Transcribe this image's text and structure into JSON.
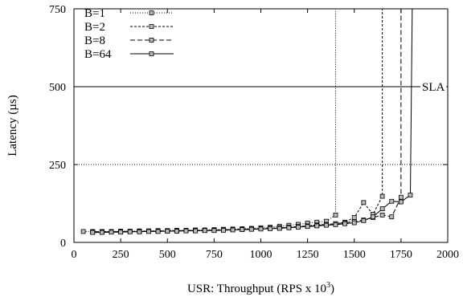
{
  "chart_data": {
    "type": "line",
    "xlabel": "USR: Throughput (RPS x 10",
    "xlabel_sup": "3",
    "xlabel_suffix": ")",
    "ylabel": "Latency (µs)",
    "xlim": [
      0,
      2000
    ],
    "ylim": [
      0,
      750
    ],
    "xticks": [
      0,
      250,
      500,
      750,
      1000,
      1250,
      1500,
      1750,
      2000
    ],
    "yticks": [
      0,
      250,
      500,
      750
    ],
    "grid": "horizontal-dotted",
    "legend_position": "top-left",
    "annotations": [
      {
        "type": "hline",
        "y": 500,
        "label": "SLA"
      }
    ],
    "series": [
      {
        "name": "B=1",
        "style": "dotted",
        "x": [
          50,
          100,
          150,
          200,
          250,
          300,
          350,
          400,
          450,
          500,
          550,
          600,
          650,
          700,
          750,
          800,
          850,
          900,
          950,
          1000,
          1050,
          1100,
          1150,
          1200,
          1250,
          1300,
          1350,
          1400,
          1400
        ],
        "y": [
          35,
          35,
          35,
          35,
          36,
          36,
          37,
          37,
          38,
          38,
          39,
          39,
          40,
          40,
          41,
          42,
          43,
          44,
          45,
          47,
          49,
          52,
          55,
          58,
          62,
          65,
          68,
          88,
          750
        ]
      },
      {
        "name": "B=2",
        "style": "short-dashed",
        "x": [
          100,
          150,
          200,
          250,
          300,
          350,
          400,
          450,
          500,
          550,
          600,
          650,
          700,
          750,
          800,
          850,
          900,
          950,
          1000,
          1050,
          1100,
          1150,
          1200,
          1250,
          1300,
          1350,
          1400,
          1450,
          1500,
          1550,
          1600,
          1650,
          1650
        ],
        "y": [
          34,
          34,
          34,
          35,
          35,
          35,
          36,
          36,
          37,
          37,
          38,
          38,
          39,
          39,
          40,
          41,
          42,
          43,
          44,
          45,
          47,
          49,
          51,
          53,
          56,
          58,
          60,
          65,
          80,
          128,
          90,
          148,
          750
        ]
      },
      {
        "name": "B=8",
        "style": "long-dashed",
        "x": [
          100,
          150,
          200,
          250,
          300,
          350,
          400,
          450,
          500,
          550,
          600,
          650,
          700,
          750,
          800,
          850,
          900,
          950,
          1000,
          1050,
          1100,
          1150,
          1200,
          1250,
          1300,
          1350,
          1400,
          1450,
          1500,
          1550,
          1600,
          1650,
          1700,
          1750,
          1750
        ],
        "y": [
          34,
          34,
          34,
          35,
          35,
          35,
          36,
          36,
          37,
          37,
          38,
          38,
          39,
          39,
          40,
          41,
          42,
          43,
          44,
          45,
          46,
          48,
          50,
          52,
          54,
          57,
          60,
          63,
          67,
          72,
          80,
          88,
          82,
          145,
          750
        ]
      },
      {
        "name": "B=64",
        "style": "solid",
        "x": [
          100,
          150,
          200,
          250,
          300,
          350,
          400,
          450,
          500,
          550,
          600,
          650,
          700,
          750,
          800,
          850,
          900,
          950,
          1000,
          1050,
          1100,
          1150,
          1200,
          1250,
          1300,
          1350,
          1400,
          1450,
          1500,
          1550,
          1600,
          1650,
          1700,
          1750,
          1800,
          1810
        ],
        "y": [
          32,
          32,
          33,
          33,
          34,
          34,
          35,
          35,
          36,
          36,
          37,
          37,
          38,
          38,
          39,
          40,
          41,
          42,
          43,
          44,
          45,
          47,
          49,
          51,
          53,
          55,
          57,
          60,
          63,
          70,
          82,
          108,
          132,
          130,
          152,
          750
        ]
      }
    ]
  }
}
